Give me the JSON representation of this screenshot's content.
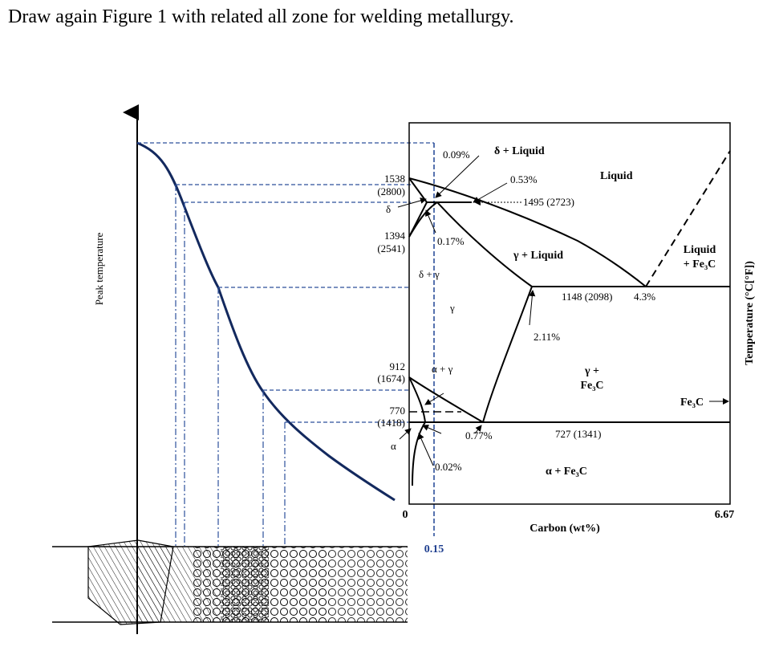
{
  "heading": "Draw again Figure 1 with related all zone for welding metallurgy.",
  "left_axis_label": "Peak temperature",
  "right_axis_label": "Temperature (°C[°F])",
  "x_axis_label": "Carbon (wt%)",
  "x_ticks": {
    "zero": "0",
    "max": "6.67",
    "marker": "0.15"
  },
  "temps": {
    "t1538": "1538",
    "t1538f": "(2800)",
    "t1394": "1394",
    "t1394f": "(2541)",
    "t912": "912",
    "t912f": "(1674)",
    "t770": "770",
    "t770f": "(1418)",
    "eutectic": "1148 (2098)",
    "eutectic_c": "4.3%",
    "eutectoid": "727 (1341)",
    "peritectic": "1495 (2723)"
  },
  "compositions": {
    "c009": "0.09%",
    "c053": "0.53%",
    "c017": "0.17%",
    "c211": "2.11%",
    "c077": "0.77%",
    "c002": "0.02%"
  },
  "phases": {
    "delta_liquid": "δ + Liquid",
    "liquid": "Liquid",
    "gamma_liquid": "γ + Liquid",
    "liquid_fe3c_1": "Liquid",
    "liquid_fe3c_2": "+ Fe₃C",
    "delta": "δ",
    "delta_gamma": "δ + γ",
    "gamma": "γ",
    "alpha_gamma": "α + γ",
    "gamma_fe3c_1": "γ +",
    "gamma_fe3c_2": "Fe₃C",
    "fe3c": "Fe₃C",
    "alpha": "α",
    "alpha_fe3c": "α + Fe₃C"
  },
  "colors": {
    "curve": "#13295e",
    "guide": "#2c4f9b",
    "text": "#000000"
  }
}
